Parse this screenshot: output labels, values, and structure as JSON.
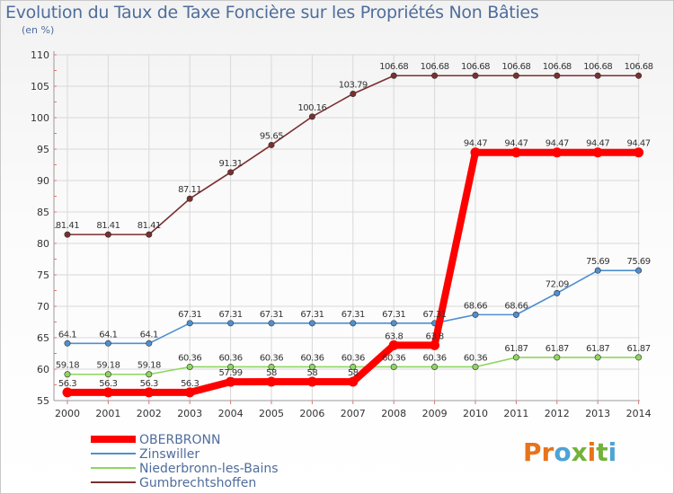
{
  "chart_data": {
    "type": "line",
    "title": "Evolution du Taux de Taxe Foncière sur les Propriétés Non Bâties",
    "ylabel": "(en %)",
    "xlabel": "",
    "ylim": [
      55,
      110
    ],
    "yticks": [
      55,
      60,
      65,
      70,
      75,
      80,
      85,
      90,
      95,
      100,
      105,
      110
    ],
    "grid": true,
    "legend_position": "bottom-left",
    "categories": [
      "2000",
      "2001",
      "2002",
      "2003",
      "2004",
      "2005",
      "2006",
      "2007",
      "2008",
      "2009",
      "2010",
      "2011",
      "2012",
      "2013",
      "2014"
    ],
    "series": [
      {
        "name": "OBERBRONN",
        "color": "#ff0000",
        "values": [
          56.3,
          56.3,
          56.3,
          56.3,
          57.99,
          58,
          58,
          58,
          63.8,
          63.8,
          94.47,
          94.47,
          94.47,
          94.47,
          94.47
        ],
        "labels": [
          "56.3",
          "56.3",
          "56.3",
          "56.3",
          "57.99",
          "58",
          "58",
          "58",
          "63.8",
          "63.8",
          "94.47",
          "94.47",
          "94.47",
          "94.47",
          "94.47"
        ]
      },
      {
        "name": "Zinswiller",
        "color": "#4f8fd0",
        "values": [
          64.1,
          64.1,
          64.1,
          67.31,
          67.31,
          67.31,
          67.31,
          67.31,
          67.31,
          67.31,
          68.66,
          68.66,
          72.09,
          75.69,
          75.69
        ],
        "labels": [
          "64.1",
          "64.1",
          "64.1",
          "67.31",
          "67.31",
          "67.31",
          "67.31",
          "67.31",
          "67.31",
          "67.31",
          "68.66",
          "68.66",
          "72.09",
          "75.69",
          "75.69"
        ]
      },
      {
        "name": "Niederbronn-les-Bains",
        "color": "#8ed65e",
        "values": [
          59.18,
          59.18,
          59.18,
          60.36,
          60.36,
          60.36,
          60.36,
          60.36,
          60.36,
          60.36,
          60.36,
          61.87,
          61.87,
          61.87,
          61.87
        ],
        "labels": [
          "59.18",
          "59.18",
          "59.18",
          "60.36",
          "60.36",
          "60.36",
          "60.36",
          "60.36",
          "60.36",
          "60.36",
          "60.36",
          "61.87",
          "61.87",
          "61.87",
          "61.87"
        ]
      },
      {
        "name": "Gumbrechtshoffen",
        "color": "#7b2f2f",
        "values": [
          81.41,
          81.41,
          81.41,
          87.11,
          91.31,
          95.65,
          100.16,
          103.79,
          106.68,
          106.68,
          106.68,
          106.68,
          106.68,
          106.68,
          106.68
        ],
        "labels": [
          "81.41",
          "81.41",
          "81.41",
          "87.11",
          "91.31",
          "95.65",
          "100.16",
          "103.79",
          "106.68",
          "106.68",
          "106.68",
          "106.68",
          "106.68",
          "106.68",
          "106.68"
        ]
      }
    ]
  },
  "logo": {
    "text": "Proxiti"
  }
}
